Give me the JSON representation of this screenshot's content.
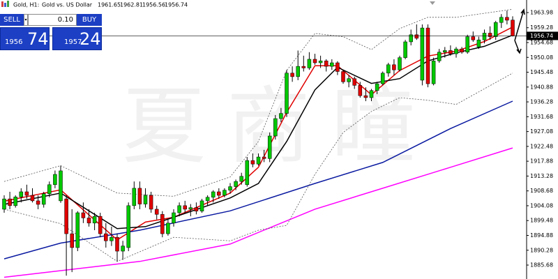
{
  "header": {
    "symbol": "Gold, H1:",
    "description": "Gold vs. US Dollar"
  },
  "trade_panel": {
    "sell": "SELL",
    "buy": "BUY",
    "volume": "0.10",
    "bid_main": "1956",
    "bid_pips": "74",
    "ask_main": "1957",
    "ask_pips": "24"
  },
  "watermark": "夏商瞳",
  "chart_data": {
    "type": "candlestick",
    "up_color": "#00c800",
    "down_color": "#e00000",
    "ylim": [
      1881.36,
      1967.87
    ],
    "yticks": [
      1963.98,
      1959.28,
      1954.68,
      1950.08,
      1945.48,
      1940.88,
      1936.28,
      1931.68,
      1927.08,
      1922.48,
      1917.88,
      1913.28,
      1908.68,
      1904.08,
      1899.48,
      1894.88,
      1890.28,
      1885.68
    ],
    "current_price": 1956.74,
    "candles": [
      [
        1903.0,
        1907.3,
        1901.9,
        1906.2
      ],
      [
        1906.2,
        1908.4,
        1903.0,
        1904.1
      ],
      [
        1904.1,
        1907.3,
        1903.5,
        1906.8
      ],
      [
        1906.8,
        1909.5,
        1905.1,
        1908.4
      ],
      [
        1908.4,
        1910.6,
        1906.2,
        1907.3
      ],
      [
        1907.3,
        1909.5,
        1905.1,
        1905.6
      ],
      [
        1905.6,
        1907.3,
        1903.0,
        1904.5
      ],
      [
        1904.5,
        1908.4,
        1903.5,
        1907.8
      ],
      [
        1907.8,
        1911.6,
        1906.7,
        1910.6
      ],
      [
        1910.6,
        1915.0,
        1909.5,
        1913.8
      ],
      [
        1905.6,
        1916.5,
        1905.0,
        1914.9
      ],
      [
        1906.2,
        1907.3,
        1882.4,
        1895.4
      ],
      [
        1895.4,
        1903.0,
        1883.5,
        1891.1
      ],
      [
        1891.1,
        1902.4,
        1890.0,
        1901.9
      ],
      [
        1901.9,
        1905.1,
        1898.7,
        1900.3
      ],
      [
        1900.3,
        1903.0,
        1897.6,
        1898.7
      ],
      [
        1898.7,
        1901.9,
        1896.5,
        1900.8
      ],
      [
        1900.8,
        1901.9,
        1894.3,
        1895.4
      ],
      [
        1895.4,
        1898.7,
        1891.1,
        1893.2
      ],
      [
        1893.2,
        1897.6,
        1891.6,
        1894.3
      ],
      [
        1894.3,
        1895.4,
        1886.8,
        1890.0
      ],
      [
        1890.0,
        1893.2,
        1887.3,
        1891.6
      ],
      [
        1891.1,
        1905.1,
        1890.0,
        1904.1
      ],
      [
        1904.1,
        1911.6,
        1903.0,
        1909.5
      ],
      [
        1909.5,
        1911.6,
        1903.0,
        1904.6
      ],
      [
        1904.6,
        1909.5,
        1903.5,
        1907.3
      ],
      [
        1907.3,
        1908.4,
        1901.9,
        1903.0
      ],
      [
        1903.0,
        1904.1,
        1899.8,
        1901.4
      ],
      [
        1901.4,
        1902.4,
        1894.3,
        1895.4
      ],
      [
        1895.4,
        1899.8,
        1894.8,
        1898.7
      ],
      [
        1898.7,
        1903.0,
        1897.6,
        1901.9
      ],
      [
        1901.9,
        1905.1,
        1900.8,
        1904.1
      ],
      [
        1904.1,
        1905.6,
        1901.9,
        1903.0
      ],
      [
        1903.0,
        1904.6,
        1900.8,
        1903.5
      ],
      [
        1903.5,
        1905.1,
        1901.4,
        1902.4
      ],
      [
        1902.4,
        1906.2,
        1901.9,
        1905.6
      ],
      [
        1905.6,
        1907.3,
        1904.1,
        1906.7
      ],
      [
        1906.7,
        1908.9,
        1905.1,
        1908.4
      ],
      [
        1908.4,
        1909.5,
        1906.2,
        1907.3
      ],
      [
        1907.3,
        1909.5,
        1906.7,
        1908.9
      ],
      [
        1908.9,
        1911.1,
        1907.8,
        1910.0
      ],
      [
        1910.0,
        1912.2,
        1908.9,
        1911.6
      ],
      [
        1911.6,
        1914.3,
        1910.6,
        1913.2
      ],
      [
        1910.6,
        1919.2,
        1910.0,
        1918.1
      ],
      [
        1918.1,
        1920.3,
        1916.0,
        1917.0
      ],
      [
        1917.0,
        1920.3,
        1916.5,
        1919.2
      ],
      [
        1919.2,
        1921.4,
        1917.6,
        1918.7
      ],
      [
        1918.7,
        1926.8,
        1917.6,
        1925.7
      ],
      [
        1925.7,
        1932.2,
        1924.6,
        1931.1
      ],
      [
        1931.1,
        1934.4,
        1930.0,
        1932.7
      ],
      [
        1932.7,
        1946.2,
        1931.6,
        1945.2
      ],
      [
        1945.2,
        1947.3,
        1942.5,
        1944.1
      ],
      [
        1944.1,
        1952.2,
        1943.0,
        1947.3
      ],
      [
        1947.3,
        1950.6,
        1945.7,
        1946.8
      ],
      [
        1946.8,
        1951.7,
        1946.2,
        1949.5
      ],
      [
        1949.5,
        1951.2,
        1947.8,
        1948.4
      ],
      [
        1948.4,
        1950.6,
        1946.8,
        1949.0
      ],
      [
        1949.0,
        1949.5,
        1945.7,
        1947.3
      ],
      [
        1947.3,
        1949.5,
        1946.2,
        1948.4
      ],
      [
        1948.4,
        1948.9,
        1944.6,
        1945.7
      ],
      [
        1945.7,
        1946.2,
        1941.9,
        1942.5
      ],
      [
        1942.5,
        1944.6,
        1940.8,
        1943.5
      ],
      [
        1943.5,
        1944.1,
        1940.3,
        1941.4
      ],
      [
        1941.4,
        1942.5,
        1937.6,
        1938.2
      ],
      [
        1938.2,
        1940.8,
        1936.5,
        1937.6
      ],
      [
        1937.6,
        1940.3,
        1936.5,
        1939.8
      ],
      [
        1939.8,
        1942.5,
        1938.7,
        1941.9
      ],
      [
        1941.9,
        1945.7,
        1941.4,
        1945.2
      ],
      [
        1945.2,
        1948.4,
        1944.1,
        1947.8
      ],
      [
        1947.8,
        1949.5,
        1944.6,
        1946.2
      ],
      [
        1946.2,
        1950.6,
        1945.7,
        1950.0
      ],
      [
        1950.0,
        1955.5,
        1949.5,
        1954.9
      ],
      [
        1954.9,
        1958.7,
        1953.8,
        1957.1
      ],
      [
        1957.1,
        1960.3,
        1955.5,
        1956.0
      ],
      [
        1943.0,
        1960.3,
        1941.4,
        1959.2
      ],
      [
        1959.2,
        1960.3,
        1940.8,
        1941.9
      ],
      [
        1941.9,
        1950.0,
        1941.4,
        1949.0
      ],
      [
        1949.0,
        1952.7,
        1948.4,
        1951.7
      ],
      [
        1951.7,
        1953.3,
        1950.0,
        1952.2
      ],
      [
        1952.2,
        1953.8,
        1950.6,
        1951.2
      ],
      [
        1951.2,
        1953.3,
        1950.0,
        1952.7
      ],
      [
        1952.7,
        1953.3,
        1951.2,
        1951.7
      ],
      [
        1951.7,
        1957.1,
        1951.2,
        1956.5
      ],
      [
        1956.5,
        1958.1,
        1954.9,
        1955.5
      ],
      [
        1953.3,
        1956.5,
        1952.7,
        1955.5
      ],
      [
        1955.5,
        1958.7,
        1954.4,
        1957.6
      ],
      [
        1957.6,
        1959.7,
        1955.5,
        1956.5
      ],
      [
        1956.5,
        1961.4,
        1955.5,
        1960.9
      ],
      [
        1960.9,
        1963.5,
        1959.2,
        1962.5
      ],
      [
        1962.5,
        1964.6,
        1960.3,
        1961.6
      ],
      [
        1961.65,
        1962.81,
        1956.56,
        1956.74
      ]
    ],
    "lines": [
      {
        "color": "#e00000",
        "style": "solid",
        "x": [
          0,
          10,
          20,
          25,
          30,
          40,
          45,
          50,
          55,
          59,
          65,
          70,
          75,
          80,
          85,
          90
        ],
        "values": [
          1905.5,
          1909.0,
          1893.5,
          1899.0,
          1900.5,
          1908.0,
          1916.0,
          1933.0,
          1947.5,
          1947.5,
          1938.5,
          1946.0,
          1950.5,
          1952.0,
          1955.0,
          1959.5
        ]
      },
      {
        "color": "#000000",
        "style": "solid",
        "x": [
          0,
          10,
          20,
          25,
          30,
          40,
          45,
          50,
          55,
          59,
          65,
          70,
          75,
          80,
          85,
          90
        ],
        "values": [
          1904.5,
          1908.0,
          1897.0,
          1897.6,
          1900.5,
          1906.5,
          1911.0,
          1924.0,
          1940.0,
          1947.0,
          1942.0,
          1943.5,
          1949.0,
          1951.5,
          1953.5,
          1957.0
        ]
      },
      {
        "color": "#0a1aa0",
        "style": "solid",
        "x": [
          0,
          10,
          24,
          40,
          55,
          67,
          79,
          90
        ],
        "values": [
          1887.6,
          1892.5,
          1896.5,
          1902.5,
          1911.0,
          1917.5,
          1928.0,
          1936.5
        ]
      },
      {
        "color": "#ff00ff",
        "style": "solid",
        "x": [
          0,
          24,
          40,
          55,
          67,
          79,
          90
        ],
        "values": [
          1881.9,
          1886.8,
          1892.2,
          1903.0,
          1909.5,
          1916.0,
          1922.0
        ]
      },
      {
        "color": "#555555",
        "style": "dotted",
        "x": [
          0,
          10,
          20,
          30,
          40,
          45,
          50,
          55,
          60,
          65,
          70,
          75,
          80,
          90
        ],
        "values": [
          1911.6,
          1916.5,
          1908.0,
          1907.0,
          1913.0,
          1924.0,
          1946.0,
          1957.5,
          1956.5,
          1952.5,
          1959.0,
          1962.5,
          1962.5,
          1965.0
        ]
      },
      {
        "color": "#555555",
        "style": "dotted",
        "x": [
          0,
          10,
          20,
          30,
          40,
          45,
          50,
          55,
          60,
          65,
          70,
          75,
          80,
          90
        ],
        "values": [
          1903.0,
          1898.5,
          1886.8,
          1894.3,
          1893.2,
          1896.5,
          1898.0,
          1913.8,
          1926.8,
          1933.3,
          1937.6,
          1936.8,
          1935.5,
          1945.2
        ]
      }
    ]
  }
}
